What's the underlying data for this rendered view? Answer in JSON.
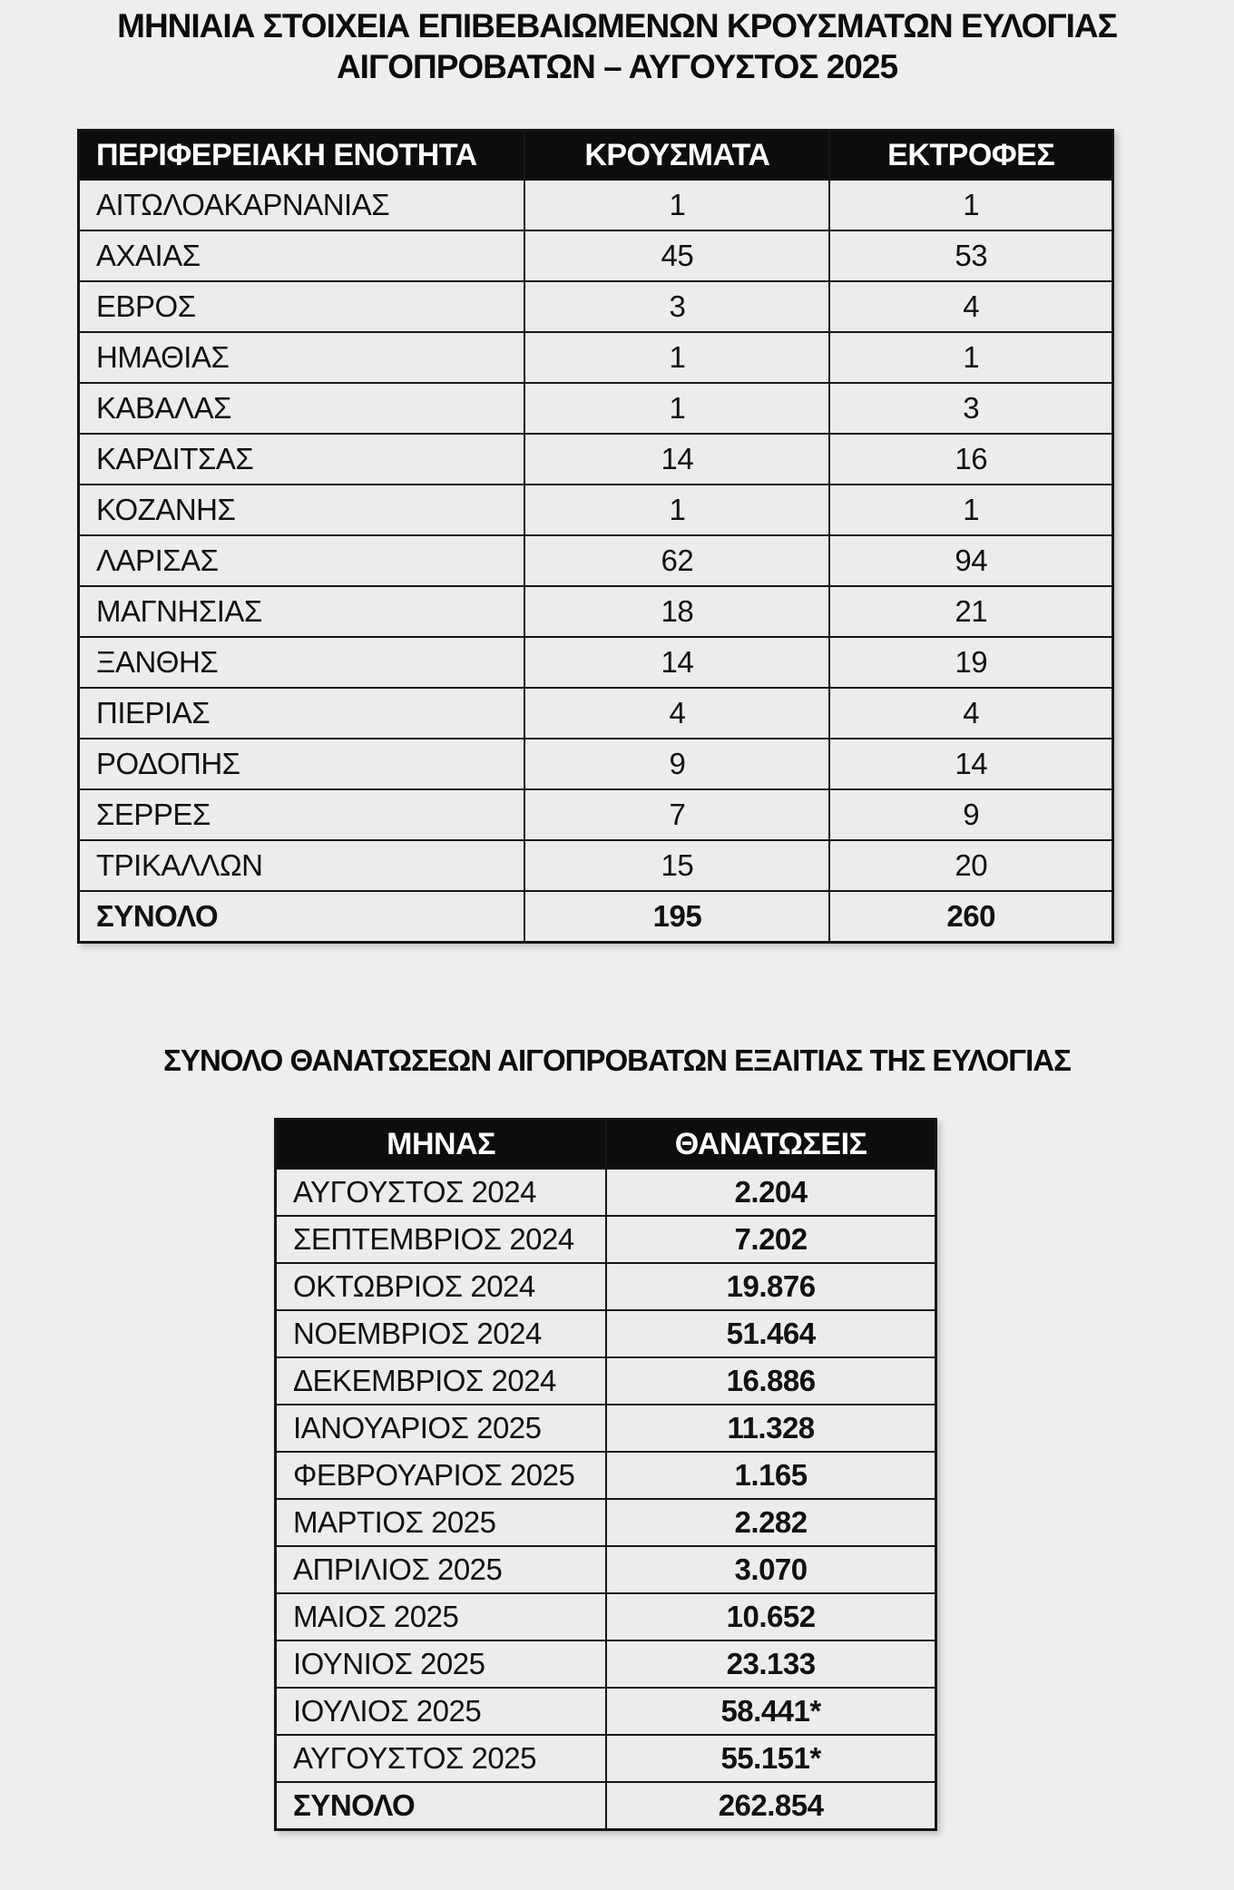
{
  "title": "ΜΗΝΙΑΙΑ ΣΤΟΙΧΕΙΑ ΕΠΙΒΕΒΑΙΩΜΕΝΩΝ ΚΡΟΥΣΜΑΤΩΝ ΕΥΛΟΓΙΑΣ ΑΙΓΟΠΡΟΒΑΤΩΝ – ΑΥΓΟΥΣΤΟΣ 2025",
  "regional_table": {
    "col_region": "ΠΕΡΙΦΕΡΕΙΑΚΗ ΕΝΟΤΗΤΑ",
    "col_cases": "ΚΡΟΥΣΜΑΤΑ",
    "col_farms": "ΕΚΤΡΟΦΕΣ",
    "rows": [
      {
        "region": "ΑΙΤΩΛΟΑΚΑΡΝΑΝΙΑΣ",
        "cases": "1",
        "farms": "1"
      },
      {
        "region": "ΑΧΑΙΑΣ",
        "cases": "45",
        "farms": "53"
      },
      {
        "region": "ΕΒΡΟΣ",
        "cases": "3",
        "farms": "4"
      },
      {
        "region": "ΗΜΑΘΙΑΣ",
        "cases": "1",
        "farms": "1"
      },
      {
        "region": "ΚΑΒΑΛΑΣ",
        "cases": "1",
        "farms": "3"
      },
      {
        "region": "ΚΑΡΔΙΤΣΑΣ",
        "cases": "14",
        "farms": "16"
      },
      {
        "region": "ΚΟΖΑΝΗΣ",
        "cases": "1",
        "farms": "1"
      },
      {
        "region": "ΛΑΡΙΣΑΣ",
        "cases": "62",
        "farms": "94"
      },
      {
        "region": "ΜΑΓΝΗΣΙΑΣ",
        "cases": "18",
        "farms": "21"
      },
      {
        "region": "ΞΑΝΘΗΣ",
        "cases": "14",
        "farms": "19"
      },
      {
        "region": "ΠΙΕΡΙΑΣ",
        "cases": "4",
        "farms": "4"
      },
      {
        "region": "ΡΟΔΟΠΗΣ",
        "cases": "9",
        "farms": "14"
      },
      {
        "region": "ΣΕΡΡΕΣ",
        "cases": "7",
        "farms": "9"
      },
      {
        "region": "ΤΡΙΚΑΛΛΩΝ",
        "cases": "15",
        "farms": "20"
      }
    ],
    "total_row": {
      "region": "ΣΥΝΟΛΟ",
      "cases": "195",
      "farms": "260"
    }
  },
  "deaths_heading": "ΣΥΝΟΛΟ ΘΑΝΑΤΩΣΕΩΝ ΑΙΓΟΠΡΟΒΑΤΩΝ ΕΞΑΙΤΙΑΣ ΤΗΣ ΕΥΛΟΓΙΑΣ",
  "deaths_table": {
    "col_month": "ΜΗΝΑΣ",
    "col_deaths": "ΘΑΝΑΤΩΣΕΙΣ",
    "rows": [
      {
        "month": "ΑΥΓΟΥΣΤΟΣ 2024",
        "deaths": "2.204"
      },
      {
        "month": "ΣΕΠΤΕΜΒΡΙΟΣ 2024",
        "deaths": "7.202"
      },
      {
        "month": "ΟΚΤΩΒΡΙΟΣ 2024",
        "deaths": "19.876"
      },
      {
        "month": "ΝΟΕΜΒΡΙΟΣ 2024",
        "deaths": "51.464"
      },
      {
        "month": "ΔΕΚΕΜΒΡΙΟΣ 2024",
        "deaths": "16.886"
      },
      {
        "month": "ΙΑΝΟΥΑΡΙΟΣ 2025",
        "deaths": "11.328"
      },
      {
        "month": "ΦΕΒΡΟΥΑΡΙΟΣ 2025",
        "deaths": "1.165"
      },
      {
        "month": "ΜΑΡΤΙΟΣ 2025",
        "deaths": "2.282"
      },
      {
        "month": "ΑΠΡΙΛΙΟΣ 2025",
        "deaths": "3.070"
      },
      {
        "month": "ΜΑΙΟΣ 2025",
        "deaths": "10.652"
      },
      {
        "month": "ΙΟΥΝΙΟΣ 2025",
        "deaths": "23.133"
      },
      {
        "month": "ΙΟΥΛΙΟΣ 2025",
        "deaths": "58.441*"
      },
      {
        "month": "ΑΥΓΟΥΣΤΟΣ 2025",
        "deaths": "55.151*"
      }
    ],
    "total_row": {
      "month": "ΣΥΝΟΛΟ",
      "deaths": "262.854"
    }
  },
  "colors": {
    "page_background": "#eeeeee",
    "cell_background": "#ececec",
    "header_background": "#0d0d0d",
    "header_text": "#ffffff",
    "border": "#161616"
  }
}
